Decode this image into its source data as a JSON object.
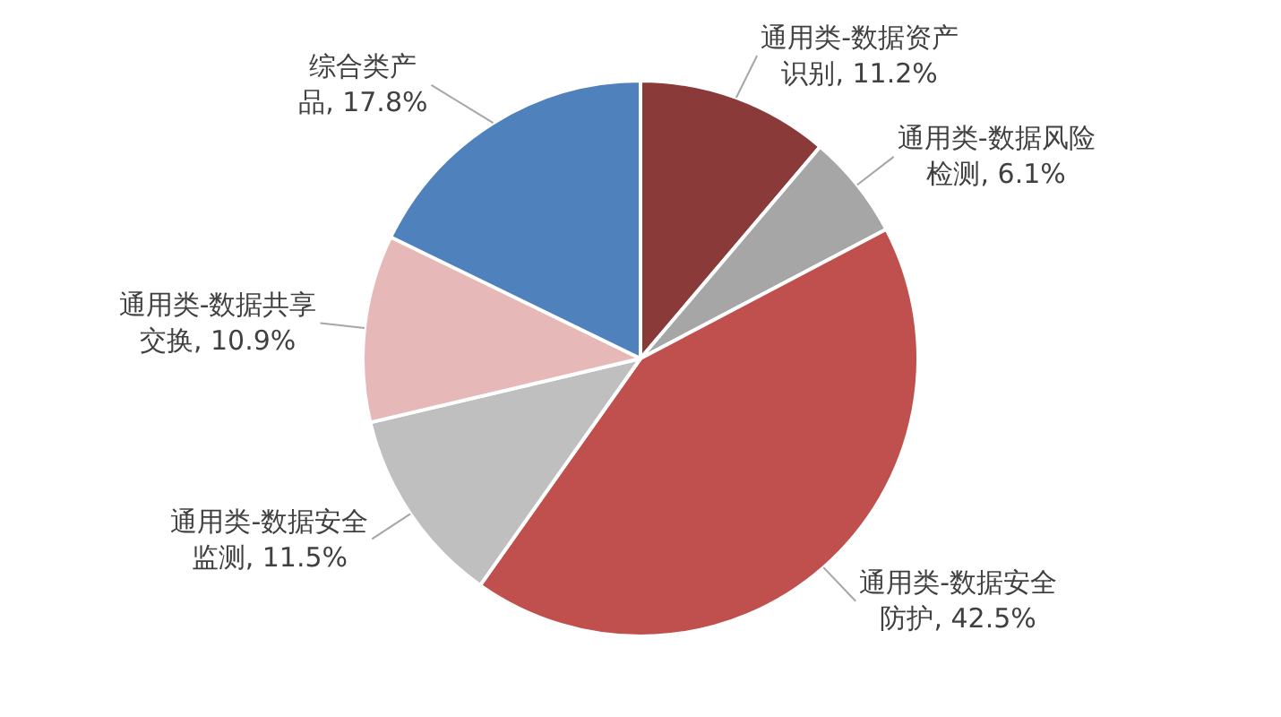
{
  "chart_data": {
    "type": "pie",
    "categories": [
      "通用类-数据资产识别",
      "通用类-数据风险检测",
      "通用类-数据安全防护",
      "通用类-数据安全监测",
      "通用类-数据共享交换",
      "综合类产品"
    ],
    "values": [
      11.2,
      6.1,
      42.5,
      11.5,
      10.9,
      17.8
    ],
    "value_labels": [
      "11.2%",
      "6.1%",
      "42.5%",
      "11.5%",
      "10.9%",
      "17.8%"
    ],
    "colors": [
      "#8b3a3a",
      "#a6a6a6",
      "#c0504d",
      "#bfbfbf",
      "#e6b9b8",
      "#4f81bd"
    ]
  }
}
